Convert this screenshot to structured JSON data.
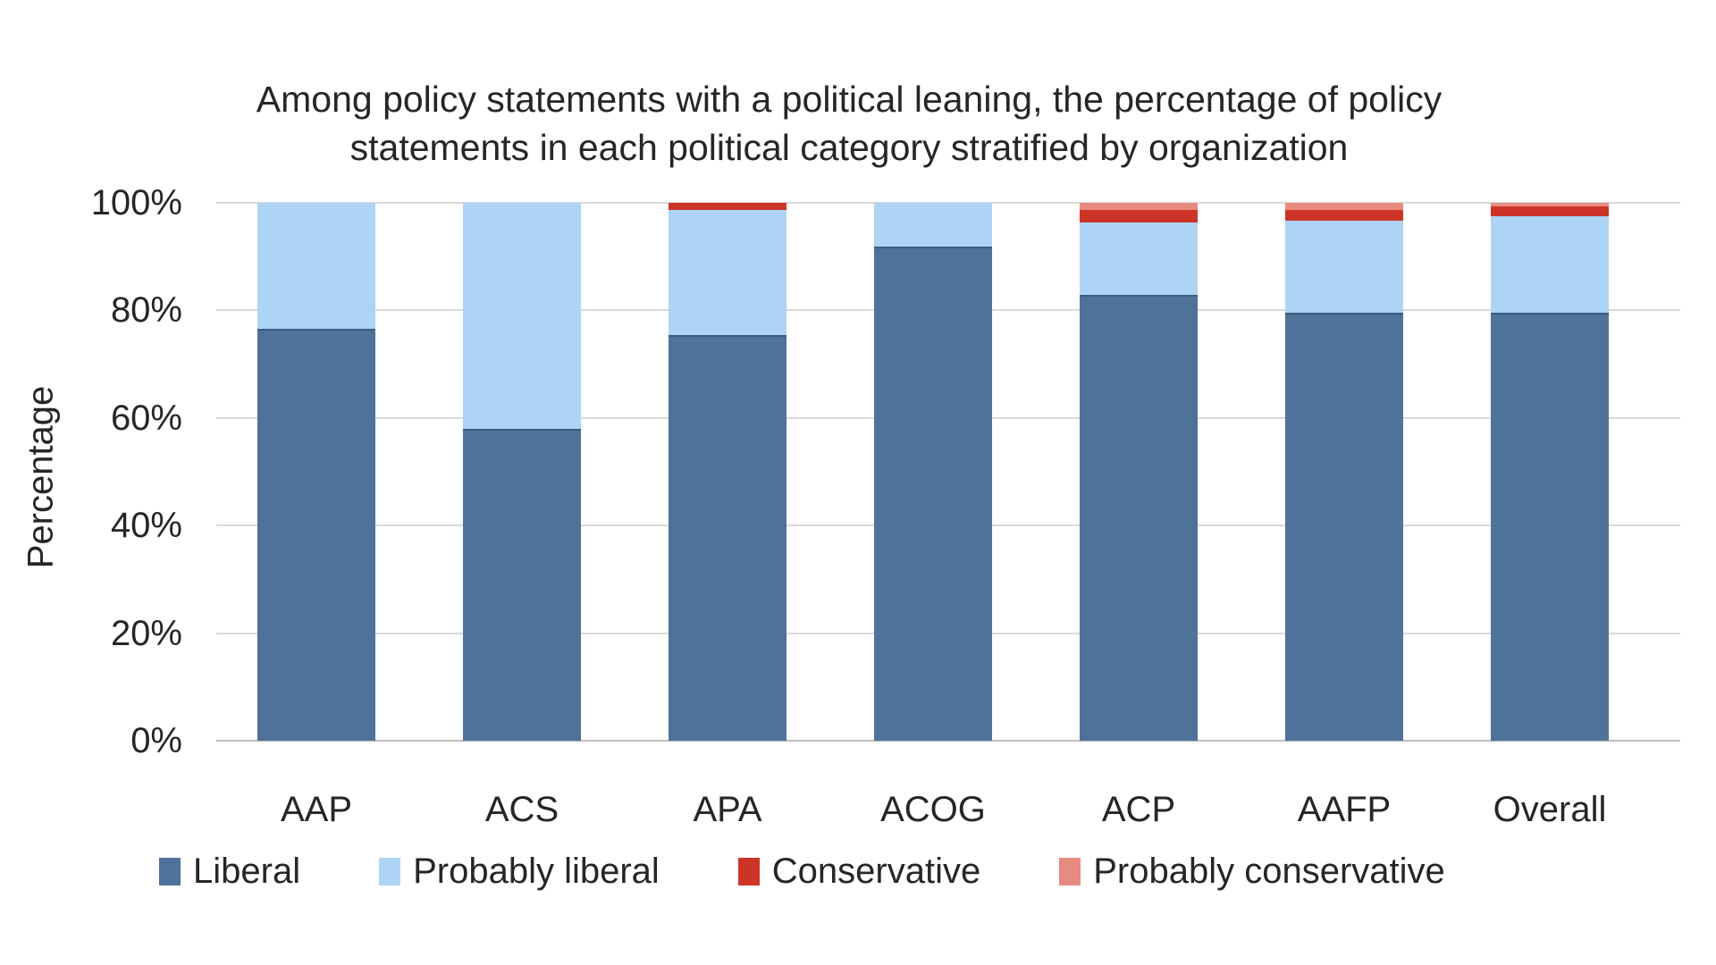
{
  "title": {
    "line1": "Among policy statements with a political leaning, the percentage of policy",
    "line2": "statements in each political category stratified by organization"
  },
  "y_axis_label": "Percentage",
  "colors": {
    "liberal": "#4e729a",
    "liberal_border": "#3a5c7e",
    "probably_liberal": "#aed4f5",
    "conservative": "#cc3427",
    "probably_conservative": "#e78b80",
    "gridline": "#d9d9d9",
    "axis_line": "#bfbfbf",
    "text": "#262626"
  },
  "chart_data": {
    "type": "bar",
    "stacked": true,
    "percent_stacked": true,
    "title": "Among policy statements with a political leaning, the percentage of policy statements in each political category stratified by organization",
    "xlabel": "",
    "ylabel": "Percentage",
    "ylim": [
      0,
      100
    ],
    "y_ticks": [
      "0%",
      "20%",
      "40%",
      "60%",
      "80%",
      "100%"
    ],
    "grid": true,
    "legend_position": "bottom",
    "categories": [
      "AAP",
      "ACS",
      "APA",
      "ACOG",
      "ACP",
      "AAFP",
      "Overall"
    ],
    "series": [
      {
        "name": "Liberal",
        "color": "#4e729a",
        "values": [
          76.6,
          58.0,
          75.4,
          91.9,
          82.9,
          79.5,
          79.6
        ]
      },
      {
        "name": "Probably liberal",
        "color": "#aed4f5",
        "values": [
          23.4,
          42.0,
          23.2,
          8.1,
          13.5,
          17.2,
          17.9
        ]
      },
      {
        "name": "Conservative",
        "color": "#cc3427",
        "values": [
          0.0,
          0.0,
          1.4,
          0.0,
          2.2,
          2.0,
          1.9
        ]
      },
      {
        "name": "Probably conservative",
        "color": "#e78b80",
        "values": [
          0.0,
          0.0,
          0.0,
          0.0,
          1.4,
          1.3,
          0.6
        ]
      }
    ]
  }
}
